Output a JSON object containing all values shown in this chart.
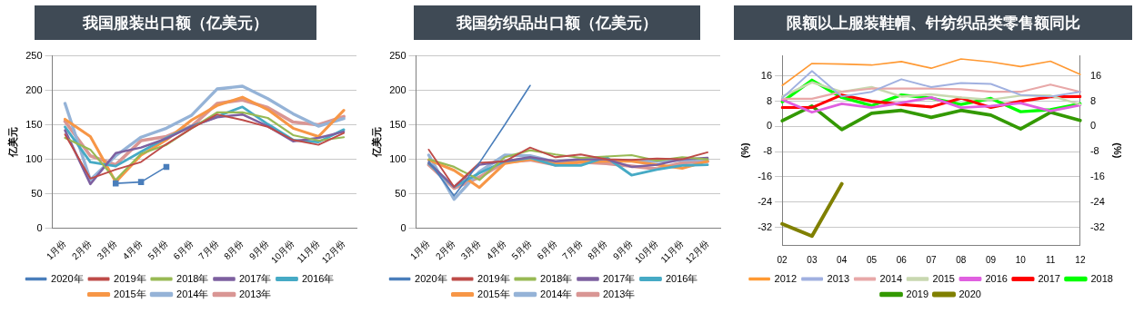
{
  "chart_data": [
    {
      "type": "line",
      "title": "我国服装出口额（亿美元）",
      "ylabel": "亿美元",
      "categories": [
        "1月份",
        "2月份",
        "3月份",
        "4月份",
        "5月份",
        "6月份",
        "7月份",
        "8月份",
        "9月份",
        "10月份",
        "11月份",
        "12月份"
      ],
      "ylim": [
        0,
        250
      ],
      "yticks": [
        0,
        50,
        100,
        150,
        200,
        250
      ],
      "grid": "y",
      "legend": "bottom",
      "marker": "none",
      "series": [
        {
          "name": "2020年",
          "color": "#4a7ebb",
          "marker": "square",
          "values": [
            null,
            null,
            65,
            67,
            89,
            null,
            null,
            null,
            null,
            null,
            null,
            null
          ]
        },
        {
          "name": "2019年",
          "color": "#be4b48",
          "values": [
            136,
            72,
            85,
            96,
            122,
            145,
            165,
            157,
            147,
            128,
            121,
            138
          ]
        },
        {
          "name": "2018年",
          "color": "#98b954",
          "values": [
            131,
            114,
            70,
            108,
            121,
            145,
            168,
            168,
            160,
            135,
            127,
            132
          ]
        },
        {
          "name": "2017年",
          "color": "#7d60a0",
          "values": [
            142,
            64,
            109,
            117,
            130,
            148,
            161,
            165,
            148,
            126,
            131,
            140
          ]
        },
        {
          "name": "2016年",
          "color": "#46aac5",
          "values": [
            147,
            96,
            90,
            111,
            131,
            148,
            162,
            176,
            151,
            128,
            125,
            143
          ]
        },
        {
          "name": "2015年",
          "color": "#f79646",
          "values": [
            158,
            133,
            67,
            106,
            128,
            157,
            178,
            190,
            172,
            145,
            133,
            171
          ]
        },
        {
          "name": "2014年",
          "color": "#95b3d7",
          "values": [
            181,
            70,
            105,
            132,
            145,
            164,
            202,
            206,
            188,
            166,
            148,
            159
          ]
        },
        {
          "name": "2013年",
          "color": "#d99694",
          "values": [
            155,
            105,
            92,
            127,
            133,
            148,
            181,
            186,
            175,
            154,
            150,
            162
          ]
        }
      ]
    },
    {
      "type": "line",
      "title": "我国纺织品出口额（亿美元）",
      "ylabel": "亿美元",
      "categories": [
        "1月份",
        "2月份",
        "3月份",
        "4月份",
        "5月份",
        "6月份",
        "7月份",
        "8月份",
        "9月份",
        "10月份",
        "11月份",
        "12月份"
      ],
      "ylim": [
        0,
        250
      ],
      "yticks": [
        0,
        50,
        100,
        150,
        200,
        250
      ],
      "grid": "y",
      "legend": "bottom",
      "marker": "none",
      "series": [
        {
          "name": "2020年",
          "color": "#4a7ebb",
          "values": [
            97,
            47,
            95,
            150,
            207,
            null,
            null,
            null,
            null,
            null,
            null,
            null
          ]
        },
        {
          "name": "2019年",
          "color": "#be4b48",
          "values": [
            114,
            60,
            95,
            97,
            117,
            103,
            107,
            100,
            99,
            101,
            100,
            110
          ]
        },
        {
          "name": "2018年",
          "color": "#98b954",
          "values": [
            100,
            89,
            70,
            103,
            113,
            107,
            102,
            104,
            106,
            98,
            103,
            100
          ]
        },
        {
          "name": "2017年",
          "color": "#7d60a0",
          "values": [
            95,
            60,
            92,
            97,
            103,
            97,
            100,
            100,
            89,
            92,
            100,
            102
          ]
        },
        {
          "name": "2016年",
          "color": "#46aac5",
          "values": [
            94,
            60,
            80,
            97,
            102,
            91,
            91,
            103,
            77,
            85,
            91,
            92
          ]
        },
        {
          "name": "2015年",
          "color": "#f79646",
          "values": [
            99,
            84,
            59,
            94,
            100,
            93,
            96,
            97,
            97,
            92,
            87,
            97
          ]
        },
        {
          "name": "2014年",
          "color": "#95b3d7",
          "values": [
            106,
            42,
            82,
            106,
            105,
            96,
            100,
            98,
            98,
            97,
            99,
            100
          ]
        },
        {
          "name": "2013年",
          "color": "#d99694",
          "values": [
            92,
            58,
            74,
            96,
            99,
            92,
            96,
            94,
            90,
            86,
            95,
            97
          ]
        }
      ]
    },
    {
      "type": "line",
      "title": "限额以上服装鞋帽、针纺织品类零售额同比",
      "ylabel": "(%)",
      "y2label": "(%)",
      "categories": [
        "02",
        "03",
        "04",
        "05",
        "06",
        "07",
        "08",
        "09",
        "10",
        "11",
        "12"
      ],
      "ylim": [
        -37.6,
        22.4
      ],
      "yticks": [
        -32,
        -24,
        -16,
        -8,
        0,
        8,
        16
      ],
      "y2lim": [
        -37.6,
        22.4
      ],
      "y2ticks": [
        -32,
        -24,
        -16,
        -8,
        0,
        8,
        16
      ],
      "grid": "y",
      "legend": "bottom",
      "marker": "none",
      "series": [
        {
          "name": "2012",
          "color": "#ff9933",
          "values": [
            13,
            20,
            19.8,
            19.5,
            20.6,
            18.5,
            21.4,
            20.5,
            19,
            20.7,
            16.5
          ]
        },
        {
          "name": "2013",
          "color": "#a0b0e0",
          "values": [
            9,
            17.6,
            9.5,
            11,
            15,
            12.5,
            13.8,
            13.5,
            10,
            9.5,
            11
          ]
        },
        {
          "name": "2014",
          "color": "#e8a8a8",
          "values": [
            8.8,
            8.8,
            11,
            12,
            12,
            12,
            11.8,
            11,
            11,
            13.3,
            11
          ]
        },
        {
          "name": "2015",
          "color": "#c8d8b0",
          "values": [
            9.5,
            14,
            11,
            12.5,
            9.5,
            10.2,
            9.2,
            8.5,
            9.8,
            9.8,
            7
          ]
        },
        {
          "name": "2016",
          "color": "#e060e0",
          "values": [
            8.5,
            4.5,
            7.2,
            6,
            7.5,
            9.2,
            6,
            6.5,
            7.4,
            4.9,
            6.8
          ]
        },
        {
          "name": "2017",
          "color": "#ff0000",
          "values": [
            6,
            6,
            10,
            8,
            7,
            6.2,
            9,
            6,
            8,
            9.4,
            9.5
          ]
        },
        {
          "name": "2018",
          "color": "#00ff00",
          "values": [
            7.8,
            14.7,
            9.2,
            6.6,
            10,
            9,
            7,
            8.9,
            4.7,
            5.3,
            7.2
          ]
        },
        {
          "name": "2019",
          "color": "#339900",
          "values": [
            1.8,
            6.5,
            -1,
            4.2,
            5.1,
            2.9,
            5.1,
            3.6,
            -0.8,
            4.5,
            1.9
          ]
        },
        {
          "name": "2020",
          "color": "#808000",
          "values": [
            -30.9,
            -34.8,
            -18.2,
            null,
            null,
            null,
            null,
            null,
            null,
            null,
            null
          ]
        }
      ]
    }
  ]
}
